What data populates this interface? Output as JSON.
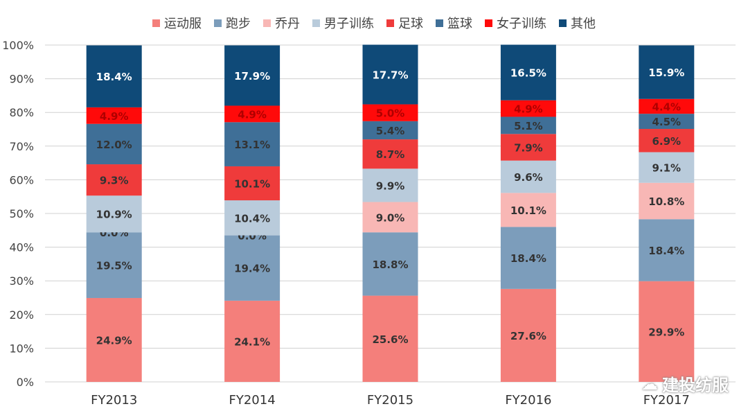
{
  "chart_data": {
    "type": "bar",
    "stacked": true,
    "categories": [
      "FY2013",
      "FY2014",
      "FY2015",
      "FY2016",
      "FY2017"
    ],
    "ylim": [
      0,
      100
    ],
    "yticks": [
      "0%",
      "10%",
      "20%",
      "30%",
      "40%",
      "50%",
      "60%",
      "70%",
      "80%",
      "90%",
      "100%"
    ],
    "legend_position": "top",
    "grid": true,
    "series": [
      {
        "name": "运动服",
        "color": "#f47f7b",
        "values": [
          24.9,
          24.1,
          25.6,
          27.6,
          29.9
        ]
      },
      {
        "name": "跑步",
        "color": "#7c9dbb",
        "values": [
          19.5,
          19.4,
          18.8,
          18.4,
          18.4
        ]
      },
      {
        "name": "乔丹",
        "color": "#f8b7b5",
        "values": [
          0.0,
          0.0,
          9.0,
          10.1,
          10.8
        ]
      },
      {
        "name": "男子训练",
        "color": "#b9cbdb",
        "values": [
          10.9,
          10.4,
          9.9,
          9.6,
          9.1
        ]
      },
      {
        "name": "足球",
        "color": "#ef3b3b",
        "values": [
          9.3,
          10.1,
          8.7,
          7.9,
          6.9
        ]
      },
      {
        "name": "篮球",
        "color": "#3f6f97",
        "values": [
          12.0,
          13.1,
          5.4,
          5.1,
          4.5
        ]
      },
      {
        "name": "女子训练",
        "color": "#ff0a0a",
        "values": [
          4.9,
          4.9,
          5.0,
          4.9,
          4.4
        ]
      },
      {
        "name": "其他",
        "color": "#0f4a78",
        "values": [
          18.4,
          17.9,
          17.7,
          16.5,
          15.9
        ]
      }
    ]
  },
  "watermark": "建投纺服"
}
